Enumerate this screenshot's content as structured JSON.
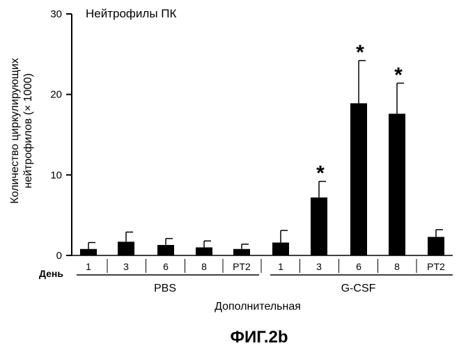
{
  "chart_data": {
    "type": "bar",
    "title": "Нейтрофилы ПК",
    "ylabel_lines": [
      "Количество циркулирующих",
      "нейтрофилов (× 1000)"
    ],
    "xlabel": "Дополнительная",
    "day_label": "День",
    "figure_label": "ФИГ.2b",
    "ylim": [
      0,
      30
    ],
    "yticks": [
      0,
      10,
      20,
      30
    ],
    "categories": [
      "1",
      "3",
      "6",
      "8",
      "PT2",
      "1",
      "3",
      "6",
      "8",
      "PT2"
    ],
    "groups": [
      {
        "name": "PBS",
        "start": 0,
        "end": 4
      },
      {
        "name": "G-CSF",
        "start": 5,
        "end": 9
      }
    ],
    "values": [
      0.8,
      1.7,
      1.3,
      1.0,
      0.8,
      1.6,
      7.2,
      18.9,
      17.6,
      2.3
    ],
    "errors": [
      0.8,
      1.2,
      0.8,
      0.8,
      0.6,
      1.5,
      2.0,
      5.3,
      3.8,
      0.9
    ],
    "significance_marker": "*",
    "significant": [
      false,
      false,
      false,
      false,
      false,
      false,
      true,
      true,
      true,
      false
    ]
  }
}
